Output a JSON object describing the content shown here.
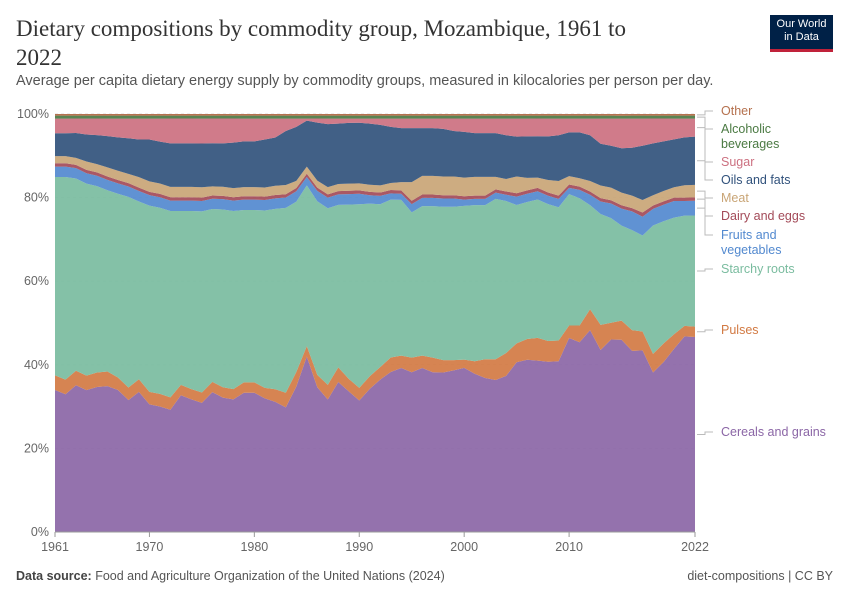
{
  "title": "Dietary compositions by commodity group, Mozambique, 1961 to 2022",
  "subtitle": "Average per capita dietary energy supply by commodity groups, measured in kilocalories per person per day.",
  "logo": {
    "line1": "Our World",
    "line2": "in Data"
  },
  "footer": {
    "source_label": "Data source:",
    "source": "Food and Agriculture Organization of the United Nations (2024)",
    "license": "diet-compositions | CC BY"
  },
  "chart_data": {
    "type": "area",
    "stacked": "percent",
    "x_start": 1961,
    "x_end": 2022,
    "ylim": [
      0,
      100
    ],
    "y_ticks": [
      "0%",
      "20%",
      "40%",
      "60%",
      "80%",
      "100%"
    ],
    "x_ticks": [
      "1961",
      "1970",
      "1980",
      "1990",
      "2000",
      "2010",
      "2022"
    ],
    "grid": "horizontal dashed",
    "legend": "right, labels beside series",
    "series": [
      {
        "name": "Cereals and grains",
        "color": "#8b66a6",
        "values": [
          34,
          33,
          35.5,
          34,
          35,
          35,
          34,
          31.5,
          33.5,
          30.5,
          30,
          29.5,
          33,
          32,
          31,
          34,
          32.5,
          32,
          33.5,
          33.5,
          32,
          31,
          30,
          35,
          42,
          35,
          31.5,
          36,
          33.5,
          31.5,
          34,
          36.5,
          38.5,
          39.5,
          38.5,
          39.5,
          38.5,
          38.5,
          39,
          39.5,
          38,
          37,
          36.5,
          37.5,
          40.5,
          41.5,
          41.5,
          41,
          41,
          46.5,
          45.5,
          48.5,
          43.5,
          46,
          45.5,
          43.5,
          43.5,
          38.5,
          41,
          44,
          47,
          46.5
        ]
      },
      {
        "name": "Pulses",
        "color": "#d27a43",
        "values": [
          3.5,
          3.5,
          3.5,
          3.5,
          3.5,
          3.5,
          3,
          3,
          3,
          3,
          3,
          3,
          2.5,
          2.5,
          2.5,
          2.5,
          2.5,
          2.5,
          2.5,
          2.5,
          2.5,
          3,
          3.5,
          3.5,
          2.5,
          3,
          3.5,
          3.5,
          3,
          3,
          3,
          3,
          3.5,
          3,
          3.5,
          3,
          3.5,
          3,
          2.5,
          2,
          3,
          4.5,
          5,
          5.5,
          4.5,
          5,
          5.5,
          5,
          5,
          3,
          4,
          5,
          6,
          4,
          4.5,
          5,
          4.5,
          4.5,
          4.5,
          3.5,
          2.5,
          2.5
        ]
      },
      {
        "name": "Starchy roots",
        "color": "#7abc9f",
        "values": [
          47.5,
          48.5,
          46.5,
          46,
          45,
          43.5,
          44,
          45.5,
          42.5,
          44.5,
          44.5,
          45,
          42,
          43,
          43.5,
          42,
          43,
          43,
          41.5,
          41.5,
          42.5,
          43,
          44.5,
          41,
          38.5,
          42,
          42,
          39,
          41.5,
          44,
          41,
          39,
          38,
          37.5,
          35,
          36,
          36.5,
          37,
          37,
          37,
          37.5,
          37,
          38.5,
          36.5,
          33,
          33,
          33.5,
          33,
          32,
          31.5,
          30.5,
          25,
          26.5,
          25,
          22.5,
          24,
          23,
          31,
          29.5,
          28,
          26.5,
          26.5
        ]
      },
      {
        "name": "Fruits and vegetables",
        "color": "#5289cf",
        "values": [
          2.5,
          2.5,
          2.5,
          2.5,
          2.5,
          2.5,
          2.5,
          2.5,
          2.5,
          2.5,
          2.5,
          2.5,
          2.5,
          2.5,
          2.5,
          2.5,
          2.5,
          2.5,
          2.5,
          2.5,
          2.5,
          2.5,
          2.5,
          2.5,
          2,
          2.5,
          2.5,
          2.5,
          2.5,
          2.5,
          2,
          2,
          1.5,
          1.5,
          2,
          2,
          2,
          2,
          2,
          1.5,
          1.5,
          1.5,
          1.5,
          1.5,
          2,
          2,
          2,
          2,
          2,
          1.5,
          2,
          2.5,
          3,
          3.5,
          4,
          4.5,
          4.5,
          4,
          4,
          4,
          3.5,
          3.5
        ]
      },
      {
        "name": "Dairy and eggs",
        "color": "#a34a58",
        "values": [
          0.8,
          0.8,
          0.8,
          0.8,
          0.8,
          0.8,
          0.8,
          0.8,
          0.8,
          0.8,
          0.8,
          0.8,
          0.8,
          0.8,
          0.8,
          0.8,
          0.8,
          0.8,
          0.8,
          0.8,
          0.8,
          0.8,
          0.8,
          0.8,
          0.8,
          0.8,
          0.8,
          0.8,
          0.8,
          0.8,
          0.8,
          0.8,
          0.8,
          0.8,
          0.8,
          0.8,
          0.8,
          0.8,
          0.8,
          0.8,
          0.8,
          0.8,
          0.8,
          0.8,
          0.8,
          0.8,
          0.8,
          0.8,
          0.8,
          0.8,
          0.8,
          0.8,
          0.8,
          0.8,
          0.8,
          0.8,
          1,
          0.8,
          0.8,
          0.8,
          0.8,
          0.8
        ]
      },
      {
        "name": "Meat",
        "color": "#c9a576",
        "values": [
          1.7,
          1.7,
          1.7,
          2,
          2,
          2.2,
          2.2,
          2.2,
          2.5,
          2.5,
          2.5,
          2.5,
          2.5,
          2.5,
          2.5,
          2.2,
          2.2,
          2.2,
          2.2,
          2.2,
          2.2,
          2.2,
          2.2,
          1.7,
          1.7,
          1.7,
          1.7,
          1.7,
          1.7,
          1.7,
          1.7,
          1.7,
          1.7,
          2,
          4.5,
          4.5,
          4.5,
          4.5,
          4.5,
          4.5,
          4.5,
          4.5,
          3,
          3,
          4,
          3,
          2.5,
          3,
          3.5,
          2,
          2,
          2.5,
          3,
          3,
          3,
          3,
          3,
          2.5,
          2.5,
          2.5,
          3,
          3
        ]
      },
      {
        "name": "Oils and fats",
        "color": "#31527c",
        "values": [
          5.5,
          5.5,
          6,
          6.5,
          7,
          7.5,
          8,
          8.5,
          9,
          10,
          10,
          10.5,
          10.5,
          10.5,
          10.5,
          10.5,
          10.5,
          11,
          11,
          11,
          11.5,
          11.5,
          13,
          13,
          11,
          14,
          15,
          14.5,
          14.5,
          14.5,
          14.5,
          14.5,
          13.5,
          13,
          13,
          11.5,
          11.5,
          11.5,
          11,
          11,
          10.5,
          10.5,
          10.5,
          10.5,
          9.5,
          10,
          10,
          10.5,
          11,
          10.5,
          11,
          11,
          10,
          10,
          10.5,
          11.5,
          13,
          12.5,
          12,
          11.5,
          11.5,
          11.5
        ]
      },
      {
        "name": "Sugar",
        "color": "#cc7080",
        "values": [
          3.5,
          3.5,
          3.5,
          3.8,
          4,
          4.2,
          4.5,
          4.7,
          5,
          5,
          5.5,
          6,
          6,
          6,
          6,
          6,
          6,
          5.8,
          5.5,
          5.5,
          5,
          4.5,
          3,
          2,
          0.5,
          1,
          1.3,
          1.2,
          1,
          1,
          1.2,
          1.5,
          2,
          2.3,
          2.3,
          2.3,
          2.3,
          2.5,
          3,
          3.2,
          3.5,
          3.5,
          3.5,
          4,
          4.3,
          4.3,
          4.3,
          4.3,
          4,
          3.3,
          3.3,
          4,
          6,
          6.5,
          7,
          7,
          6.5,
          6,
          5.5,
          5,
          4.5,
          4.3
        ]
      },
      {
        "name": "Alcoholic beverages",
        "color": "#4b7a43",
        "values": [
          0.7,
          0.7,
          0.7,
          0.7,
          0.7,
          0.7,
          0.7,
          0.7,
          0.7,
          0.7,
          0.7,
          0.7,
          0.7,
          0.7,
          0.7,
          0.7,
          0.7,
          0.7,
          0.7,
          0.7,
          0.7,
          0.7,
          0.7,
          0.7,
          0.7,
          0.7,
          0.7,
          0.7,
          0.7,
          0.7,
          0.7,
          0.7,
          0.7,
          0.7,
          0.7,
          0.7,
          0.7,
          0.7,
          0.7,
          0.7,
          0.7,
          0.7,
          0.7,
          0.7,
          0.7,
          0.7,
          0.7,
          0.7,
          0.7,
          0.7,
          0.7,
          0.7,
          0.7,
          0.7,
          0.7,
          0.7,
          0.7,
          0.7,
          0.7,
          0.7,
          0.7,
          0.7
        ]
      },
      {
        "name": "Other",
        "color": "#b5714e",
        "values": [
          0.4,
          0.4,
          0.4,
          0.4,
          0.4,
          0.4,
          0.4,
          0.4,
          0.4,
          0.4,
          0.4,
          0.4,
          0.4,
          0.4,
          0.4,
          0.4,
          0.4,
          0.4,
          0.4,
          0.4,
          0.4,
          0.4,
          0.4,
          0.4,
          0.4,
          0.4,
          0.4,
          0.4,
          0.4,
          0.4,
          0.4,
          0.4,
          0.4,
          0.4,
          0.4,
          0.4,
          0.4,
          0.4,
          0.4,
          0.4,
          0.4,
          0.4,
          0.4,
          0.4,
          0.4,
          0.4,
          0.4,
          0.4,
          0.4,
          0.4,
          0.4,
          0.4,
          0.4,
          0.4,
          0.4,
          0.4,
          0.4,
          0.4,
          0.4,
          0.4,
          0.4,
          0.4
        ]
      }
    ],
    "legend_labels": [
      {
        "series": "Other",
        "lines": [
          "Other"
        ]
      },
      {
        "series": "Alcoholic beverages",
        "lines": [
          "Alcoholic",
          "beverages"
        ]
      },
      {
        "series": "Sugar",
        "lines": [
          "Sugar"
        ]
      },
      {
        "series": "Oils and fats",
        "lines": [
          "Oils and fats"
        ]
      },
      {
        "series": "Meat",
        "lines": [
          "Meat"
        ]
      },
      {
        "series": "Dairy and eggs",
        "lines": [
          "Dairy and eggs"
        ]
      },
      {
        "series": "Fruits and vegetables",
        "lines": [
          "Fruits and",
          "vegetables"
        ]
      },
      {
        "series": "Starchy roots",
        "lines": [
          "Starchy roots"
        ]
      },
      {
        "series": "Pulses",
        "lines": [
          "Pulses"
        ]
      },
      {
        "series": "Cereals and grains",
        "lines": [
          "Cereals and grains"
        ]
      }
    ]
  }
}
